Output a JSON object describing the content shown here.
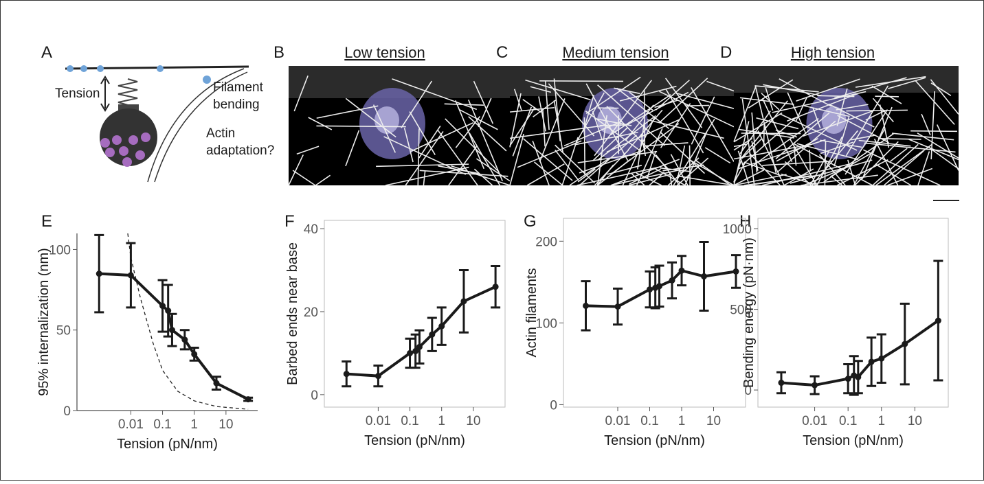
{
  "panel_letters": [
    "A",
    "B",
    "C",
    "D",
    "E",
    "F",
    "G",
    "H"
  ],
  "schematic": {
    "tension": "Tension",
    "bending": [
      "Filament",
      "bending"
    ],
    "adaptation": [
      "Actin",
      "adaptation?"
    ]
  },
  "image_titles": [
    "Low tension",
    "Medium tension",
    "High tension"
  ],
  "chart_data": [
    {
      "type": "line",
      "x_label": "Tension (pN/nm)",
      "y_label": "95% internalization (nm)",
      "log_x": true,
      "axes": "open",
      "xlim": [
        0.0002,
        100
      ],
      "xticks": [
        0.01,
        0.1,
        1,
        10
      ],
      "ylim": [
        0,
        110
      ],
      "yticks": [
        0,
        50,
        100
      ],
      "x": [
        0.001,
        0.01,
        0.1,
        0.15,
        0.2,
        0.5,
        1,
        5,
        50
      ],
      "series": [
        {
          "color": "#1a1a1a",
          "values": [
            85,
            84,
            65,
            62,
            50,
            44,
            35,
            17,
            7
          ],
          "errors": [
            24,
            20,
            16,
            16,
            10,
            6,
            4,
            4,
            1
          ]
        }
      ],
      "reference_curve": {
        "x": [
          0.008,
          0.01,
          0.02,
          0.05,
          0.1,
          0.3,
          1,
          5,
          50
        ],
        "values": [
          110,
          95,
          70,
          42,
          25,
          12,
          6,
          2.5,
          0.8
        ]
      }
    },
    {
      "type": "line",
      "x_label": "Tension (pN/nm)",
      "y_label": "Barbed ends near base",
      "log_x": true,
      "axes": "box",
      "xlim": [
        0.0002,
        100
      ],
      "xticks": [
        0.01,
        0.1,
        1,
        10
      ],
      "ylim": [
        -3,
        42
      ],
      "yticks": [
        0,
        20,
        40
      ],
      "x": [
        0.001,
        0.01,
        0.1,
        0.15,
        0.2,
        0.5,
        1,
        5,
        50
      ],
      "series": [
        {
          "color": "#1a1a1a",
          "values": [
            5,
            4.5,
            10,
            10.5,
            11.5,
            14.5,
            16.5,
            22.5,
            26
          ],
          "errors": [
            3,
            2.5,
            3.5,
            4,
            4,
            4,
            4.5,
            7.5,
            5
          ]
        }
      ]
    },
    {
      "type": "line",
      "x_label": "Tension (pN/nm)",
      "y_label": "Actin filaments",
      "log_x": true,
      "axes": "box",
      "xlim": [
        0.0002,
        100
      ],
      "xticks": [
        0.01,
        0.1,
        1,
        10
      ],
      "ylim": [
        -3,
        228
      ],
      "yticks": [
        0,
        100,
        200
      ],
      "x": [
        0.001,
        0.01,
        0.1,
        0.15,
        0.2,
        0.5,
        1,
        5,
        50
      ],
      "series": [
        {
          "color": "#1a1a1a",
          "values": [
            121,
            120,
            141,
            143,
            145,
            152,
            164,
            157,
            163
          ],
          "errors": [
            30,
            22,
            22,
            25,
            25,
            22,
            18,
            42,
            20
          ]
        }
      ]
    },
    {
      "type": "line",
      "x_label": "Tension (pN/nm)",
      "y_label": "Bending energy (pN·nm)",
      "log_x": true,
      "axes": "box",
      "xlim": [
        0.0002,
        100
      ],
      "xticks": [
        0.01,
        0.1,
        1,
        10
      ],
      "ylim": [
        -106,
        1064
      ],
      "yticks": [
        0,
        500,
        1000
      ],
      "x": [
        0.001,
        0.01,
        0.1,
        0.15,
        0.2,
        0.5,
        1,
        5,
        50
      ],
      "series": [
        {
          "color": "#1a1a1a",
          "values": [
            45,
            30,
            70,
            90,
            80,
            175,
            195,
            285,
            430
          ],
          "errors": [
            65,
            55,
            90,
            120,
            100,
            150,
            150,
            250,
            370
          ]
        }
      ]
    }
  ]
}
